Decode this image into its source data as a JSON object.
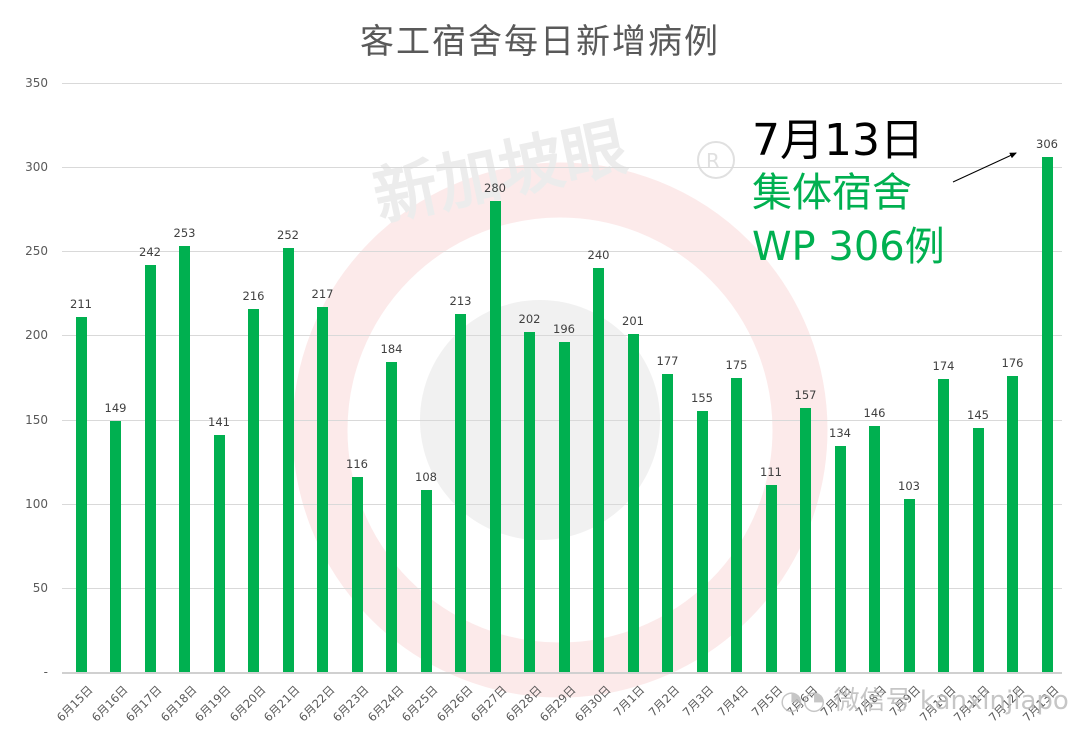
{
  "chart_data": {
    "type": "bar",
    "title": "客工宿舍每日新增病例",
    "xlabel": "",
    "ylabel": "",
    "ylim": [
      0,
      350
    ],
    "yticks": [
      "-",
      "50",
      "100",
      "150",
      "200",
      "250",
      "300",
      "350"
    ],
    "grid": true,
    "legend": null,
    "categories": [
      "6月15日",
      "6月16日",
      "6月17日",
      "6月18日",
      "6月19日",
      "6月20日",
      "6月21日",
      "6月22日",
      "6月23日",
      "6月24日",
      "6月25日",
      "6月26日",
      "6月27日",
      "6月28日",
      "6月29日",
      "6月30日",
      "7月1日",
      "7月2日",
      "7月3日",
      "7月4日",
      "7月5日",
      "7月6日",
      "7月7日",
      "7月8日",
      "7月9日",
      "7月10日",
      "7月11日",
      "7月12日",
      "7月13日"
    ],
    "values": [
      211,
      149,
      242,
      253,
      141,
      216,
      252,
      217,
      116,
      184,
      108,
      213,
      280,
      202,
      196,
      240,
      201,
      177,
      155,
      175,
      111,
      157,
      134,
      146,
      103,
      174,
      145,
      176,
      306
    ],
    "bar_color": "#00b050",
    "annotations": [
      {
        "text": "7月13日",
        "color": "#000000"
      },
      {
        "text": "集体宿舍",
        "color": "#00b050"
      },
      {
        "text": "WP 306例",
        "color": "#00b050"
      }
    ]
  },
  "watermarks": {
    "brand": "新加坡眼",
    "registered": "®",
    "wechat": "微信号 kanxinjiapo"
  }
}
